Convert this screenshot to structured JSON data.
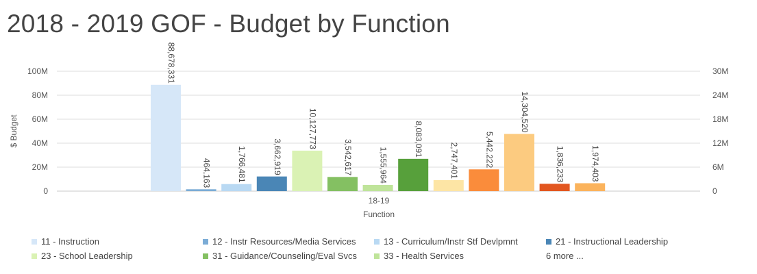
{
  "title": "2018 - 2019 GOF - Budget by Function",
  "chart_data": {
    "type": "bar",
    "title": "2018 - 2019 GOF - Budget by Function",
    "xlabel": "Function",
    "ylabel": "$ Budget",
    "categories": [
      "18-19"
    ],
    "ylim": [
      0,
      100000000
    ],
    "y2lim": [
      0,
      30000000
    ],
    "yticks": [
      "0",
      "20M",
      "40M",
      "60M",
      "80M",
      "100M"
    ],
    "y2ticks": [
      "0",
      "6M",
      "12M",
      "18M",
      "24M",
      "30M"
    ],
    "grid": true,
    "legend_position": "bottom",
    "series": [
      {
        "name": "11 - Instruction",
        "value": 88678331,
        "label": "88,678,331",
        "axis": "left",
        "color": "#d6e7f8"
      },
      {
        "name": "12 - Instr Resources/Media Services",
        "value": 464163,
        "label": "464,163",
        "axis": "right",
        "color": "#7bacd6"
      },
      {
        "name": "13 - Curriculum/Instr Stf Devlpmnt",
        "value": 1766481,
        "label": "1,766,481",
        "axis": "right",
        "color": "#b9d9f3"
      },
      {
        "name": "21 - Instructional Leadership",
        "value": 3662919,
        "label": "3,662,919",
        "axis": "right",
        "color": "#4a86b6"
      },
      {
        "name": "23 - School Leadership",
        "value": 10127773,
        "label": "10,127,773",
        "axis": "right",
        "color": "#daf2b4"
      },
      {
        "name": "31 - Guidance/Counseling/Eval Svcs",
        "value": 3542617,
        "label": "3,542,617",
        "axis": "right",
        "color": "#84c062"
      },
      {
        "name": "33 - Health Services",
        "value": 1555964,
        "label": "1,555,964",
        "axis": "right",
        "color": "#bfe49a"
      },
      {
        "name": "",
        "value": 8083091,
        "label": "8,083,091",
        "axis": "right",
        "color": "#57a03b"
      },
      {
        "name": "",
        "value": 2747401,
        "label": "2,747,401",
        "axis": "right",
        "color": "#fde5a5"
      },
      {
        "name": "",
        "value": 5442222,
        "label": "5,442,222",
        "axis": "right",
        "color": "#fa8c3b"
      },
      {
        "name": "",
        "value": 14304520,
        "label": "14,304,520",
        "axis": "right",
        "color": "#fccb80"
      },
      {
        "name": "",
        "value": 1836233,
        "label": "1,836,233",
        "axis": "right",
        "color": "#e2561f"
      },
      {
        "name": "",
        "value": 1974403,
        "label": "1,974,403",
        "axis": "right",
        "color": "#fbb35c"
      }
    ]
  },
  "legend": {
    "more_label": "6 more ..."
  }
}
